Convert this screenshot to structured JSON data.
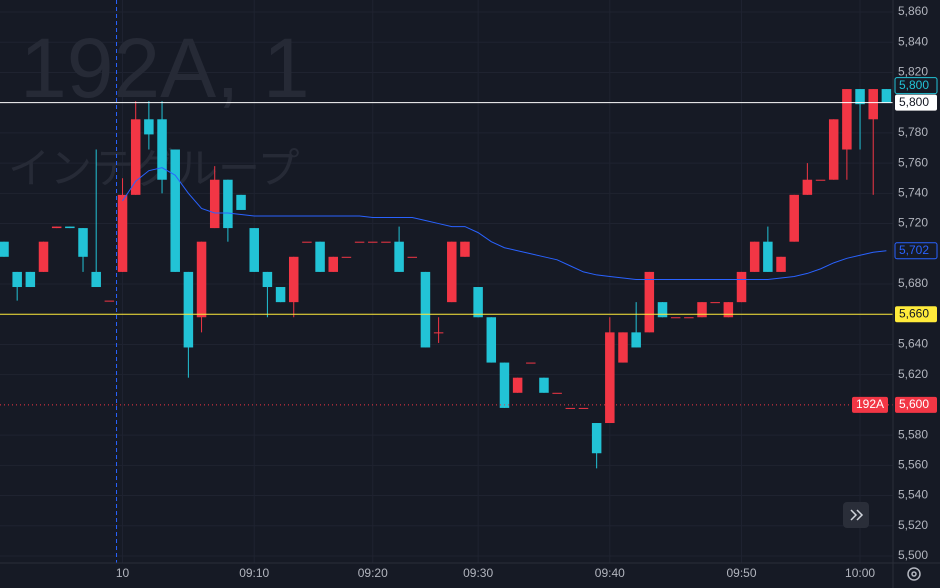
{
  "chart_data": {
    "type": "candlestick",
    "watermark": "192A, 1",
    "watermark_subtitle": "インテグループ",
    "up_color": "#f23645",
    "down_color": "#22c3d6",
    "categories": [
      null,
      null,
      null,
      null,
      null,
      null,
      null,
      null,
      null,
      "10",
      null,
      null,
      null,
      null,
      null,
      null,
      null,
      null,
      null,
      "09:10",
      null,
      null,
      null,
      null,
      null,
      null,
      null,
      null,
      "09:20",
      null,
      null,
      null,
      null,
      null,
      null,
      null,
      "09:30",
      null,
      null,
      null,
      null,
      null,
      null,
      null,
      null,
      null,
      "09:40",
      null,
      null,
      null,
      null,
      null,
      null,
      null,
      null,
      null,
      "09:50",
      null,
      null,
      null,
      null,
      null,
      null,
      null,
      null,
      "10:00",
      null,
      null
    ],
    "open": [
      5708,
      5688,
      5688,
      5688,
      5717,
      5718,
      5717,
      5688,
      5669,
      5688,
      5739,
      5789,
      5789,
      5769,
      5688,
      5658,
      5717,
      5749,
      5739,
      5717,
      5688,
      5678,
      5668,
      5708,
      5708,
      5688,
      5698,
      5708,
      5708,
      5708,
      5708,
      5698,
      5688,
      5648,
      5668,
      5698,
      5678,
      5658,
      5628,
      5608,
      5628,
      5618,
      5608,
      5598,
      5598,
      5588,
      5588,
      5628,
      5648,
      5648,
      5668,
      5658,
      5658,
      5658,
      5668,
      5658,
      5668,
      5688,
      5708,
      5688,
      5708,
      5739,
      5749,
      5749,
      5769,
      5809,
      5789,
      5809
    ],
    "high": [
      5708,
      5688,
      5688,
      5708,
      5718,
      5718,
      5717,
      5769,
      5669,
      5750,
      5801,
      5801,
      5801,
      5769,
      5688,
      5708,
      5758,
      5749,
      5739,
      5717,
      5688,
      5678,
      5698,
      5708,
      5708,
      5698,
      5698,
      5708,
      5708,
      5708,
      5718,
      5698,
      5688,
      5658,
      5708,
      5708,
      5678,
      5658,
      5628,
      5618,
      5628,
      5618,
      5608,
      5598,
      5598,
      5588,
      5658,
      5648,
      5668,
      5688,
      5668,
      5658,
      5658,
      5668,
      5668,
      5668,
      5688,
      5708,
      5718,
      5698,
      5739,
      5760,
      5749,
      5789,
      5809,
      5809,
      5809,
      5809
    ],
    "low": [
      5698,
      5669,
      5678,
      5688,
      5717,
      5717,
      5688,
      5678,
      5669,
      5688,
      5739,
      5769,
      5740,
      5688,
      5618,
      5648,
      5717,
      5708,
      5729,
      5688,
      5658,
      5668,
      5658,
      5708,
      5688,
      5688,
      5698,
      5708,
      5708,
      5708,
      5688,
      5698,
      5638,
      5641,
      5668,
      5698,
      5658,
      5628,
      5598,
      5608,
      5628,
      5608,
      5608,
      5598,
      5598,
      5558,
      5588,
      5628,
      5638,
      5648,
      5658,
      5658,
      5658,
      5658,
      5668,
      5658,
      5668,
      5688,
      5688,
      5688,
      5708,
      5739,
      5749,
      5749,
      5749,
      5769,
      5739,
      5800
    ],
    "close": [
      5698,
      5678,
      5678,
      5708,
      5718,
      5717,
      5698,
      5678,
      5669,
      5739,
      5789,
      5779,
      5749,
      5688,
      5638,
      5708,
      5749,
      5717,
      5729,
      5688,
      5678,
      5668,
      5698,
      5708,
      5688,
      5698,
      5698,
      5708,
      5708,
      5708,
      5688,
      5698,
      5638,
      5648,
      5708,
      5708,
      5658,
      5628,
      5598,
      5618,
      5628,
      5608,
      5608,
      5598,
      5598,
      5568,
      5648,
      5648,
      5638,
      5688,
      5658,
      5658,
      5658,
      5668,
      5668,
      5668,
      5688,
      5708,
      5688,
      5698,
      5739,
      5749,
      5749,
      5789,
      5809,
      5799,
      5809,
      5800
    ],
    "vwap": {
      "color": "#2962ff",
      "label": {
        "value": 5702,
        "label": "5,702"
      },
      "values": [
        null,
        null,
        null,
        null,
        null,
        null,
        null,
        null,
        null,
        5735,
        5748,
        5755,
        5757,
        5752,
        5740,
        5730,
        5727,
        5727,
        5726,
        5725,
        5725,
        5725,
        5725,
        5725,
        5725,
        5725,
        5725,
        5725,
        5724,
        5724,
        5724,
        5724,
        5722,
        5720,
        5718,
        5718,
        5714,
        5708,
        5704,
        5702,
        5700,
        5698,
        5696,
        5692,
        5688,
        5686,
        5685,
        5684,
        5683,
        5683,
        5683,
        5683,
        5683,
        5683,
        5683,
        5683,
        5683,
        5683,
        5683,
        5684,
        5685,
        5687,
        5690,
        5694,
        5697,
        5699,
        5701,
        5702
      ]
    },
    "last_price": {
      "value": 5800,
      "label": "5,800",
      "color": "#22c3d6"
    },
    "price_lines": [
      {
        "value": 5800,
        "label": "5,800",
        "color": "#ffffff"
      },
      {
        "value": 5660,
        "label": "5,660",
        "color": "#ffeb3b"
      },
      {
        "value": 5600,
        "label": "5,600",
        "color": "#f23645",
        "symbol": "192A"
      }
    ],
    "ylim": [
      5500,
      5860
    ],
    "yticks": [
      {
        "value": 5500,
        "label": "5,500"
      },
      {
        "value": 5520,
        "label": "5,520"
      },
      {
        "value": 5540,
        "label": "5,540"
      },
      {
        "value": 5560,
        "label": "5,560"
      },
      {
        "value": 5580,
        "label": "5,580"
      },
      {
        "value": 5620,
        "label": "5,620"
      },
      {
        "value": 5640,
        "label": "5,640"
      },
      {
        "value": 5680,
        "label": "5,680"
      },
      {
        "value": 5720,
        "label": "5,720"
      },
      {
        "value": 5740,
        "label": "5,740"
      },
      {
        "value": 5760,
        "label": "5,760"
      },
      {
        "value": 5780,
        "label": "5,780"
      },
      {
        "value": 5820,
        "label": "5,820"
      },
      {
        "value": 5840,
        "label": "5,840"
      },
      {
        "value": 5860,
        "label": "5,860"
      }
    ],
    "grid": true
  }
}
